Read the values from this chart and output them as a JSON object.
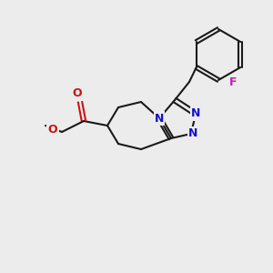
{
  "bg": "#ececec",
  "bond_color": "#1a1a1a",
  "N_color": "#1111cc",
  "O_color": "#cc1111",
  "F_color": "#bb22bb",
  "lw": 1.5,
  "fs": 9.0,
  "figsize": [
    3.0,
    3.0
  ],
  "dpi": 100,
  "xlim": [
    0,
    300
  ],
  "ylim": [
    0,
    300
  ]
}
